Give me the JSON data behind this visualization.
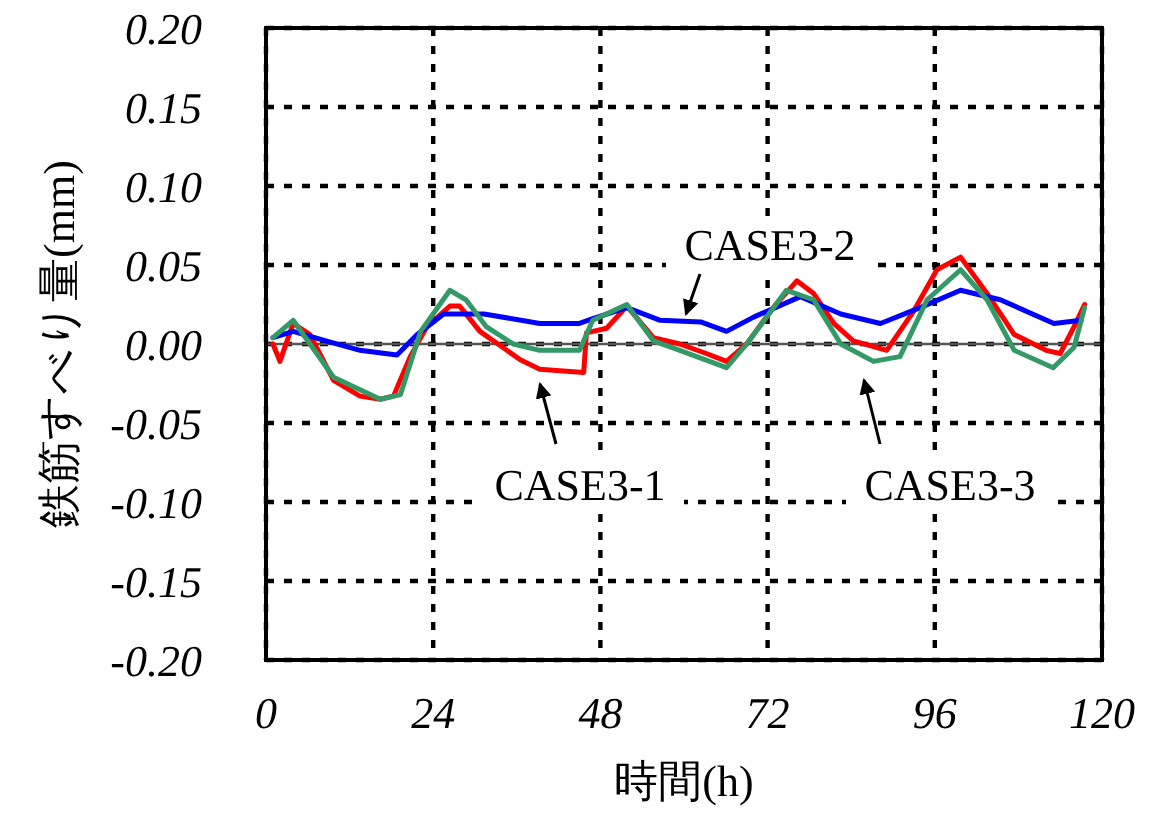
{
  "chart_data": {
    "type": "line",
    "xlabel": "時間(h)",
    "ylabel": "鉄筋すべり量(mm)",
    "xlim": [
      0,
      120
    ],
    "ylim": [
      -0.2,
      0.2
    ],
    "xticks": [
      0,
      24,
      48,
      72,
      96,
      120
    ],
    "yticks": [
      {
        "value": 0.2,
        "label": "0.20"
      },
      {
        "value": 0.15,
        "label": "0.15"
      },
      {
        "value": 0.1,
        "label": "0.10"
      },
      {
        "value": 0.05,
        "label": "0.05"
      },
      {
        "value": 0,
        "label": "0.00"
      },
      {
        "value": -0.05,
        "label": "-0.05"
      },
      {
        "value": -0.1,
        "label": "-0.10"
      },
      {
        "value": -0.15,
        "label": "-0.15"
      },
      {
        "value": -0.2,
        "label": "-0.20"
      }
    ],
    "grid": true,
    "marker": "none",
    "line_style": "solid",
    "ref_lines": [
      {
        "axis": "y",
        "value": 0,
        "color": "#555555",
        "line_style": "solid"
      }
    ],
    "series": [
      {
        "name": "CASE3-1",
        "color": "#ff0000",
        "x": [
          1,
          2,
          3.9,
          6.3,
          9.7,
          13.5,
          16.4,
          18.3,
          20.7,
          23.1,
          26.4,
          27.8,
          30.7,
          33.6,
          36.5,
          39.3,
          45.6,
          46,
          48.9,
          51.8,
          55.6,
          59.4,
          63.2,
          66.1,
          69,
          72.8,
          76.2,
          78.6,
          81.5,
          84.3,
          89.1,
          93,
          96.3,
          99.7,
          103.5,
          107.4,
          112,
          114,
          116,
          117.5
        ],
        "values": [
          0,
          -0.011,
          0.013,
          0.006,
          -0.023,
          -0.033,
          -0.035,
          -0.033,
          -0.008,
          0.011,
          0.024,
          0.024,
          0.008,
          -0.001,
          -0.01,
          -0.016,
          -0.018,
          0.007,
          0.01,
          0.024,
          0.004,
          0,
          -0.006,
          -0.011,
          0,
          0.023,
          0.04,
          0.032,
          0.013,
          0.002,
          -0.004,
          0.021,
          0.047,
          0.055,
          0.032,
          0.006,
          -0.004,
          -0.006,
          0.011,
          0.025
        ]
      },
      {
        "name": "CASE3-2",
        "color": "#0000ff",
        "x": [
          1,
          3.9,
          8.6,
          13.5,
          18.8,
          21.7,
          25.5,
          31.3,
          39.3,
          45,
          46.9,
          51.8,
          56.6,
          62.4,
          66.1,
          70,
          76.7,
          82.5,
          88.2,
          93.9,
          99.7,
          105.4,
          113.1,
          117
        ],
        "values": [
          0.004,
          0.008,
          0.002,
          -0.004,
          -0.007,
          0.006,
          0.019,
          0.019,
          0.013,
          0.013,
          0.016,
          0.023,
          0.015,
          0.014,
          0.008,
          0.017,
          0.03,
          0.019,
          0.013,
          0.023,
          0.034,
          0.028,
          0.013,
          0.015
        ]
      },
      {
        "name": "CASE3-3",
        "color": "#339966",
        "x": [
          1,
          3.9,
          9.7,
          16.4,
          19.3,
          22.2,
          26.4,
          28.7,
          31.6,
          35.5,
          39.3,
          45,
          46.9,
          51.8,
          55.6,
          59.4,
          66.1,
          69,
          74.7,
          78.6,
          82.5,
          87.2,
          91,
          94.9,
          99.7,
          103.5,
          107.4,
          113,
          116,
          117.5
        ],
        "values": [
          0.004,
          0.015,
          -0.021,
          -0.035,
          -0.032,
          0.008,
          0.034,
          0.028,
          0.011,
          0,
          -0.004,
          -0.004,
          0.015,
          0.025,
          0.002,
          -0.004,
          -0.015,
          0,
          0.034,
          0.028,
          0,
          -0.011,
          -0.008,
          0.028,
          0.047,
          0.028,
          -0.004,
          -0.015,
          -0.002,
          0.023
        ]
      }
    ]
  }
}
